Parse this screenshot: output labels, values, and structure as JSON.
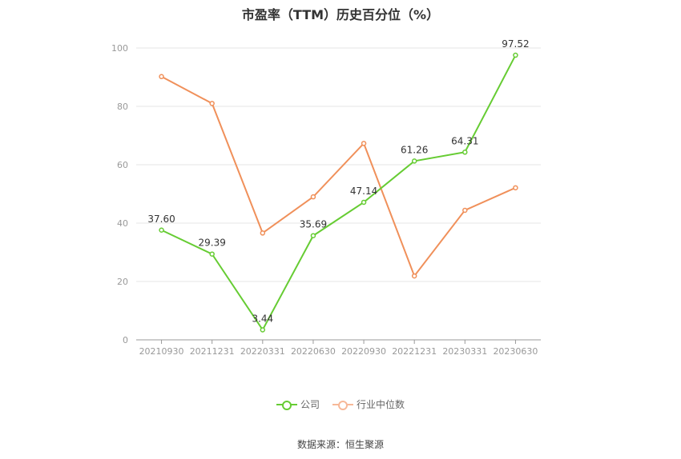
{
  "chart_data": {
    "type": "line",
    "title": "市盈率（TTM）历史百分位（%）",
    "categories": [
      "20210930",
      "20211231",
      "20220331",
      "20220630",
      "20220930",
      "20221231",
      "20230331",
      "20230630"
    ],
    "ylim": [
      0,
      100
    ],
    "yticks": [
      0,
      20,
      40,
      60,
      80,
      100
    ],
    "grid": true,
    "legend_position": "bottom",
    "series": [
      {
        "name": "公司",
        "color": "#66cc33",
        "values": [
          37.6,
          29.39,
          3.44,
          35.69,
          47.14,
          61.26,
          64.31,
          97.52
        ],
        "labels": [
          "37.60",
          "29.39",
          "3.44",
          "35.69",
          "47.14",
          "61.26",
          "64.31",
          "97.52"
        ]
      },
      {
        "name": "行业中位数",
        "color": "#f0905a",
        "values": [
          90.2,
          81.0,
          36.6,
          49.0,
          67.3,
          21.9,
          44.4,
          52.1
        ]
      }
    ]
  },
  "footer": {
    "source": "数据来源：恒生聚源"
  }
}
